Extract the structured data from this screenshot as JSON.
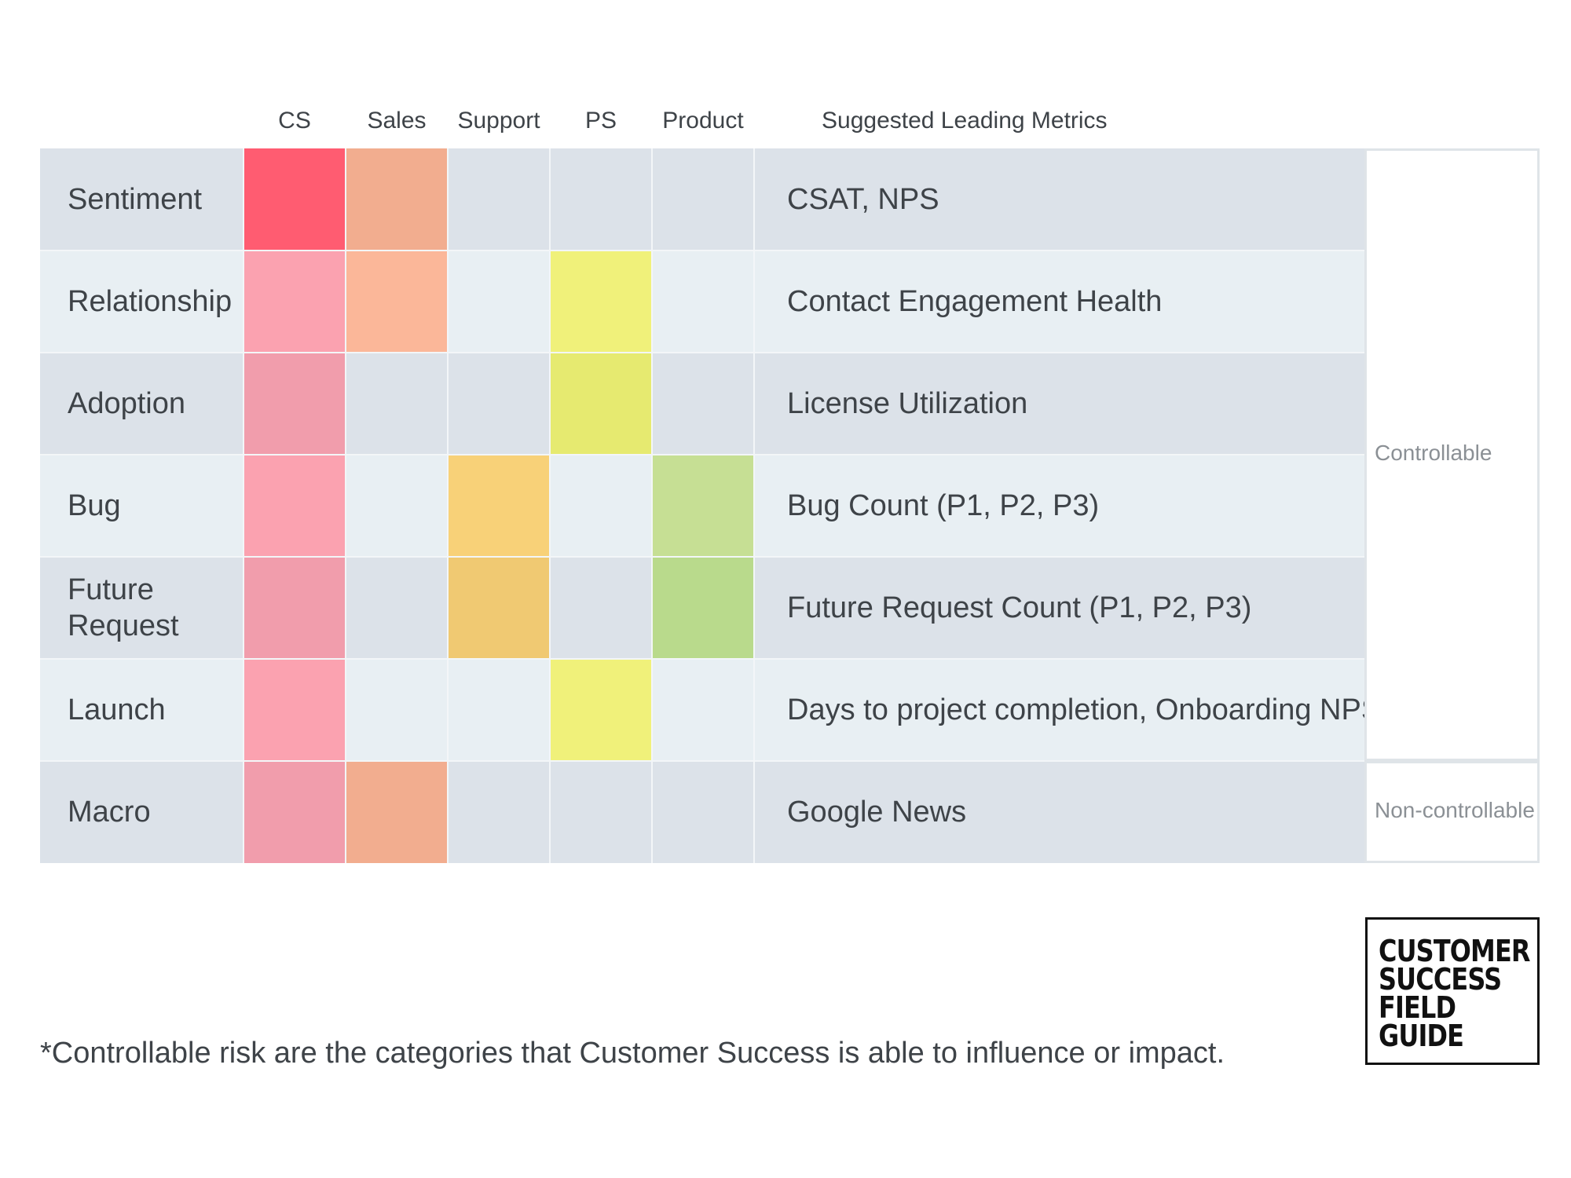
{
  "chart_data": {
    "type": "heatmap",
    "columns": [
      "CS",
      "Sales",
      "Support",
      "PS",
      "Product"
    ],
    "metrics_header": "Suggested Leading Metrics",
    "rows": [
      {
        "label": "Sentiment",
        "metric": "CSAT, NPS",
        "cells": [
          "#ff5c71",
          "#f2ad8f",
          null,
          null,
          null
        ]
      },
      {
        "label": "Relationship",
        "metric": "Contact Engagement Health",
        "cells": [
          "#fba2b0",
          "#fbb799",
          null,
          "#f0f17a",
          null
        ]
      },
      {
        "label": "Adoption",
        "metric": "License Utilization",
        "cells": [
          "#f19dac",
          null,
          null,
          "#e6ea70",
          null
        ]
      },
      {
        "label": "Bug",
        "metric": "Bug Count (P1, P2, P3)",
        "cells": [
          "#fba2b0",
          null,
          "#f8d178",
          null,
          "#c6df94"
        ]
      },
      {
        "label": "Future Request",
        "metric": "Future Request Count (P1, P2, P3)",
        "cells": [
          "#f19dac",
          null,
          "#f0c972",
          null,
          "#b9da8c"
        ]
      },
      {
        "label": "Launch",
        "metric": "Days to project completion, Onboarding NPS",
        "cells": [
          "#fba2b0",
          null,
          null,
          "#f0f17a",
          null
        ]
      },
      {
        "label": "Macro",
        "metric": "Google News",
        "cells": [
          "#f19dac",
          "#f2ad8f",
          null,
          null,
          null
        ]
      }
    ],
    "groups": [
      {
        "label": "Controllable",
        "rows": [
          0,
          6
        ]
      },
      {
        "label": "Non-controllable",
        "rows": [
          6,
          7
        ]
      }
    ]
  },
  "footnote": "*Controllable risk are the categories that Customer Success is able to influence or impact.",
  "logo": {
    "lines": [
      "CUSTOMER",
      "SUCCESS",
      "FIELD",
      "GUIDE"
    ]
  }
}
